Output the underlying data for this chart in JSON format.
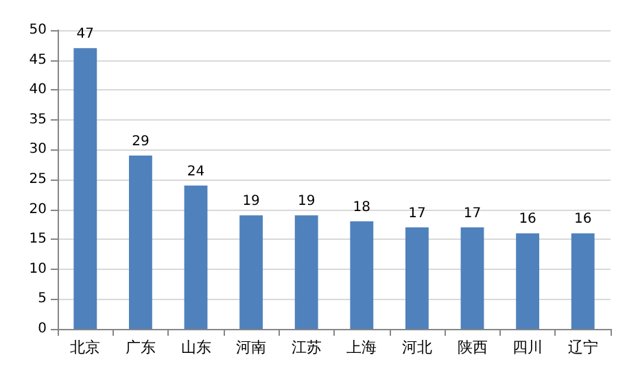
{
  "chart_data": {
    "type": "bar",
    "categories": [
      "北京",
      "广东",
      "山东",
      "河南",
      "江苏",
      "上海",
      "河北",
      "陕西",
      "四川",
      "辽宁"
    ],
    "values": [
      47,
      29,
      24,
      19,
      19,
      18,
      17,
      17,
      16,
      16
    ],
    "color": "#4f81bd",
    "ylim": [
      0,
      50
    ],
    "yticks": [
      0,
      5,
      10,
      15,
      20,
      25,
      30,
      35,
      40,
      45,
      50
    ],
    "grid": "y",
    "data_labels": true
  }
}
